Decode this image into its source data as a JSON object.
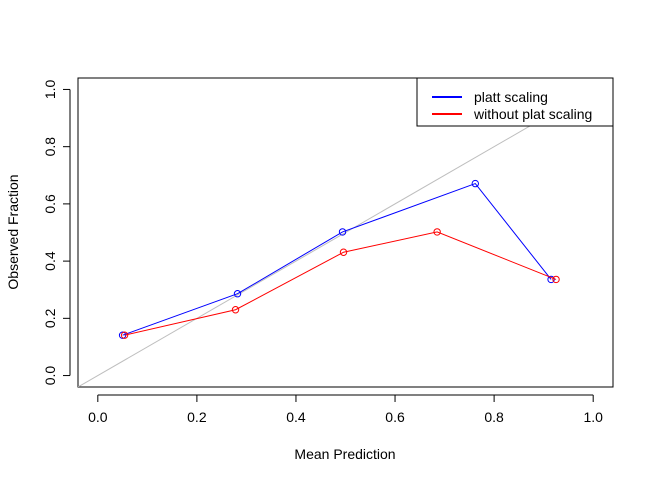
{
  "chart_data": {
    "type": "line",
    "xlabel": "Mean Prediction",
    "ylabel": "Observed Fraction",
    "xlim": [
      -0.04,
      1.04
    ],
    "ylim": [
      -0.04,
      1.04
    ],
    "xticks": [
      {
        "value": 0,
        "label": "0.0"
      },
      0.2,
      0.4,
      0.6,
      0.8,
      {
        "value": 1,
        "label": "1.0"
      }
    ],
    "yticks": [
      {
        "value": 0,
        "label": "0.0"
      },
      0.2,
      0.4,
      0.6,
      0.8,
      {
        "value": 1,
        "label": "1.0"
      }
    ],
    "legend": "top-right",
    "series": [
      {
        "name": "platt scaling",
        "color": "#0000ff",
        "x": [
          0.05,
          0.282,
          0.494,
          0.762,
          0.915
        ],
        "values": [
          0.141,
          0.286,
          0.502,
          0.671,
          0.336
        ]
      },
      {
        "name": "without plat scaling",
        "color": "#ff0000",
        "x": [
          0.054,
          0.278,
          0.496,
          0.685,
          0.925
        ],
        "values": [
          0.141,
          0.23,
          0.431,
          0.502,
          0.336
        ]
      }
    ]
  }
}
